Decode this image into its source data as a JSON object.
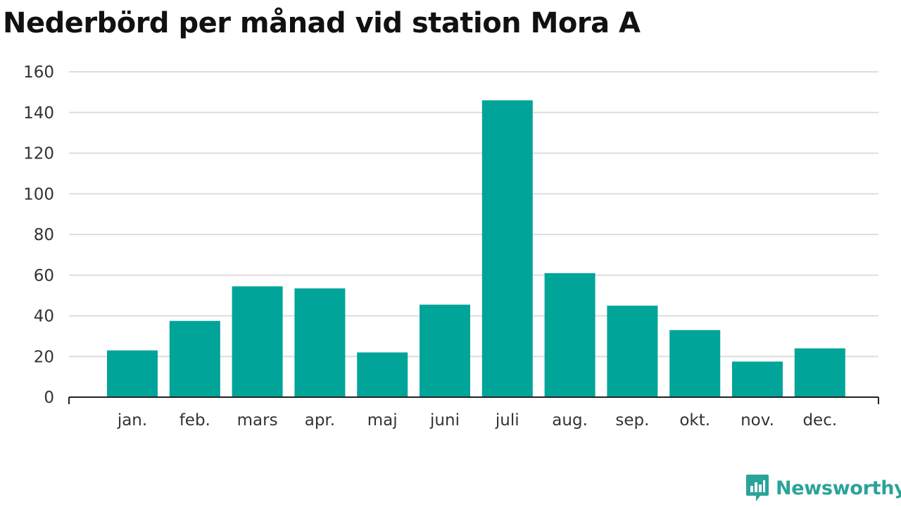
{
  "title": "Nederbörd per månad vid station Mora A",
  "brand": {
    "name": "Newsworthy",
    "icon": "newsworthy-logo-icon",
    "color": "#2aa39a"
  },
  "colors": {
    "bar": "#00a499",
    "grid": "#dddddd",
    "axis": "#222222"
  },
  "chart_data": {
    "type": "bar",
    "title": "Nederbörd per månad vid station Mora A",
    "categories": [
      "jan.",
      "feb.",
      "mars",
      "apr.",
      "maj",
      "juni",
      "juli",
      "aug.",
      "sep.",
      "okt.",
      "nov.",
      "dec."
    ],
    "values": [
      23,
      37.5,
      54.5,
      53.5,
      22,
      45.5,
      146,
      61,
      45,
      33,
      17.5,
      24
    ],
    "ylim": [
      0,
      160
    ],
    "yticks": [
      0,
      20,
      40,
      60,
      80,
      100,
      120,
      140,
      160
    ],
    "grid": true,
    "legend": "none",
    "xlabel": "",
    "ylabel": ""
  }
}
